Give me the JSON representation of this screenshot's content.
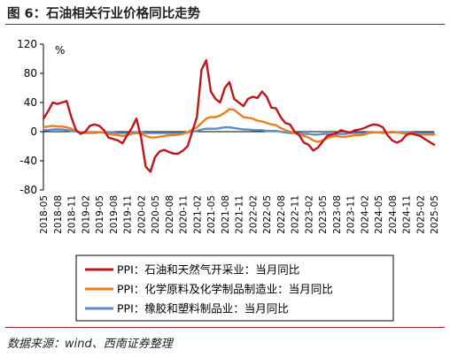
{
  "title": "图 6：石油相关行业价格同比走势",
  "source": "数据来源：wind、西南证券整理",
  "chart_data": {
    "type": "line",
    "unit": "%",
    "ylim": [
      -80,
      120
    ],
    "yticks": [
      120,
      80,
      40,
      0,
      -40,
      -80
    ],
    "grid": false,
    "legend_position": "bottom",
    "x": [
      "2018-05",
      "2018-06",
      "2018-07",
      "2018-08",
      "2018-09",
      "2018-10",
      "2018-11",
      "2018-12",
      "2019-01",
      "2019-02",
      "2019-03",
      "2019-04",
      "2019-05",
      "2019-06",
      "2019-07",
      "2019-08",
      "2019-09",
      "2019-10",
      "2019-11",
      "2019-12",
      "2020-01",
      "2020-02",
      "2020-03",
      "2020-04",
      "2020-05",
      "2020-06",
      "2020-07",
      "2020-08",
      "2020-09",
      "2020-10",
      "2020-11",
      "2020-12",
      "2021-01",
      "2021-02",
      "2021-03",
      "2021-04",
      "2021-05",
      "2021-06",
      "2021-07",
      "2021-08",
      "2021-09",
      "2021-10",
      "2021-11",
      "2021-12",
      "2022-01",
      "2022-02",
      "2022-03",
      "2022-04",
      "2022-05",
      "2022-06",
      "2022-07",
      "2022-08",
      "2022-09",
      "2022-10",
      "2022-11",
      "2022-12",
      "2023-01",
      "2023-02",
      "2023-03",
      "2023-04",
      "2023-05",
      "2023-06",
      "2023-07",
      "2023-08",
      "2023-09",
      "2023-10",
      "2023-11",
      "2023-12",
      "2024-01",
      "2024-02",
      "2024-03",
      "2024-04",
      "2024-05",
      "2024-06",
      "2024-07",
      "2024-08",
      "2024-09",
      "2024-10",
      "2024-11",
      "2024-12",
      "2025-01",
      "2025-02",
      "2025-03",
      "2025-04",
      "2025-05"
    ],
    "xtick_labels": [
      "2018-05",
      "2018-08",
      "2018-11",
      "2019-02",
      "2019-05",
      "2019-08",
      "2019-11",
      "2020-02",
      "2020-05",
      "2020-08",
      "2020-11",
      "2021-02",
      "2021-05",
      "2021-08",
      "2021-11",
      "2022-02",
      "2022-05",
      "2022-08",
      "2022-11",
      "2023-02",
      "2023-05",
      "2023-08",
      "2023-11",
      "2024-02",
      "2024-05",
      "2024-08",
      "2024-11",
      "2025-02",
      "2025-05"
    ],
    "series": [
      {
        "name": "PPI：石油和天然气开采业：当月同比",
        "color": "#c0151b",
        "values": [
          18,
          28,
          40,
          38,
          40,
          42,
          20,
          2,
          -3,
          0,
          8,
          10,
          8,
          2,
          -8,
          -10,
          -12,
          -16,
          -5,
          5,
          18,
          -8,
          -48,
          -55,
          -35,
          -27,
          -25,
          -28,
          -30,
          -30,
          -26,
          -20,
          0,
          20,
          85,
          98,
          55,
          45,
          40,
          60,
          68,
          45,
          40,
          35,
          45,
          48,
          46,
          55,
          48,
          33,
          32,
          20,
          12,
          10,
          0,
          -5,
          -15,
          -18,
          -26,
          -22,
          -14,
          -6,
          -4,
          -2,
          2,
          0,
          -1,
          2,
          3,
          5,
          8,
          10,
          9,
          6,
          -5,
          -12,
          -15,
          -12,
          -5,
          -2,
          -4,
          -6,
          -10,
          -14,
          -18
        ]
      },
      {
        "name": "PPI：化学原料及化学制品制造业：当月同比",
        "color": "#ed7d1f",
        "values": [
          6,
          7,
          8,
          7,
          7,
          6,
          4,
          1,
          -1,
          -2,
          -2,
          -2,
          -1,
          -1,
          -3,
          -4,
          -5,
          -6,
          -5,
          -3,
          -2,
          -3,
          -6,
          -8,
          -8,
          -7,
          -6,
          -5,
          -5,
          -4,
          -3,
          -1,
          3,
          6,
          12,
          18,
          20,
          20,
          22,
          26,
          31,
          30,
          25,
          20,
          19,
          18,
          15,
          14,
          12,
          10,
          9,
          5,
          2,
          0,
          -2,
          -4,
          -6,
          -8,
          -12,
          -14,
          -12,
          -9,
          -7,
          -6,
          -7,
          -7,
          -6,
          -5,
          -5,
          -4,
          -2,
          -1,
          -1,
          -2,
          -1,
          0,
          -1,
          -2,
          -3,
          -3,
          -4,
          -4,
          -4,
          -4,
          -4
        ]
      },
      {
        "name": "PPI：橡胶和塑料制品业：当月同比",
        "color": "#5b8ccc",
        "values": [
          2,
          2,
          3,
          3,
          3,
          2,
          1,
          0,
          -1,
          -1,
          -1,
          -1,
          -1,
          -1,
          -1,
          -1,
          -2,
          -2,
          -2,
          -1,
          -1,
          -1,
          -2,
          -2,
          -2,
          -2,
          -2,
          -2,
          -2,
          -2,
          -2,
          -1,
          0,
          1,
          3,
          4,
          4,
          4,
          5,
          6,
          6,
          5,
          4,
          3,
          3,
          2,
          2,
          2,
          1,
          1,
          1,
          0,
          -1,
          -2,
          -2,
          -2,
          -3,
          -3,
          -4,
          -4,
          -3,
          -3,
          -3,
          -3,
          -3,
          -3,
          -2,
          -2,
          -2,
          -2,
          -1,
          -1,
          -1,
          -1,
          -1,
          -1,
          -1,
          -1,
          -1,
          -1,
          -2,
          -2,
          -2,
          -2,
          -2
        ]
      }
    ]
  }
}
